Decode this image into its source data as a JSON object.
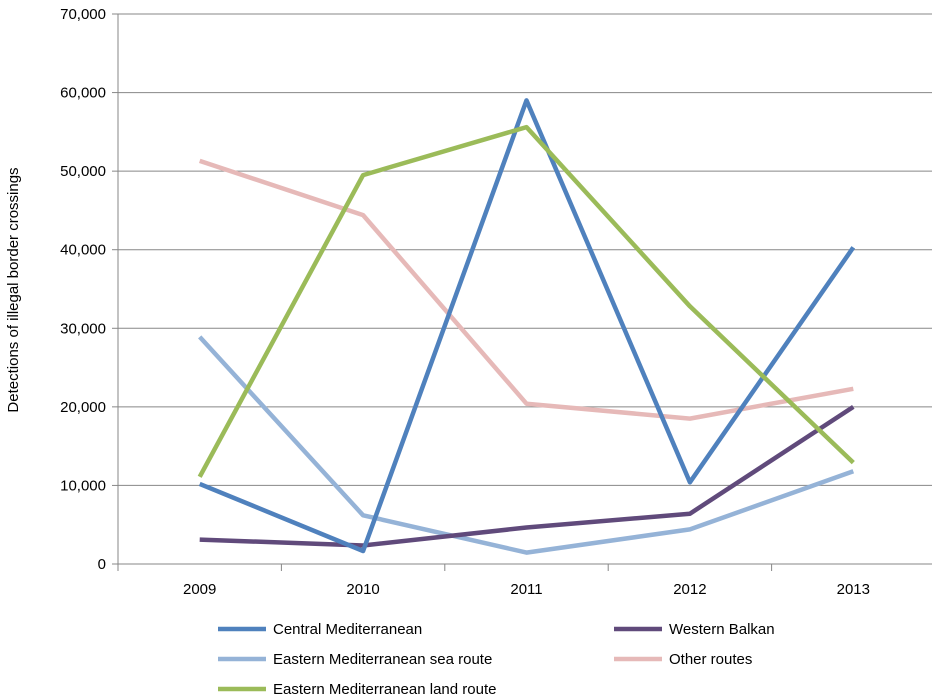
{
  "chart_data": {
    "type": "line",
    "title": "",
    "xlabel": "",
    "ylabel": "Detections of illegal border crossings",
    "categories": [
      "2009",
      "2010",
      "2011",
      "2012",
      "2013"
    ],
    "ylim": [
      0,
      70000
    ],
    "yticks": [
      0,
      10000,
      20000,
      30000,
      40000,
      50000,
      60000,
      70000
    ],
    "ytick_labels": [
      "0",
      "10,000",
      "20,000",
      "30,000",
      "40,000",
      "50,000",
      "60,000",
      "70,000"
    ],
    "grid": "horizontal",
    "legend_position": "bottom",
    "series": [
      {
        "name": "Central Mediterranean",
        "color": "#4F81BD",
        "values": [
          10200,
          1650,
          59000,
          10400,
          40300
        ]
      },
      {
        "name": "Eastern Mediterranean sea route",
        "color": "#95B3D7",
        "values": [
          28900,
          6200,
          1450,
          4400,
          11800
        ]
      },
      {
        "name": "Eastern Mediterranean land route",
        "color": "#9BBB59",
        "values": [
          11100,
          49500,
          55600,
          32800,
          12900
        ]
      },
      {
        "name": "Western Balkan",
        "color": "#604A7B",
        "values": [
          3100,
          2350,
          4650,
          6400,
          20000
        ]
      },
      {
        "name": "Other routes",
        "color": "#E6B9B8",
        "values": [
          51300,
          44400,
          20400,
          18500,
          22300
        ]
      }
    ]
  }
}
